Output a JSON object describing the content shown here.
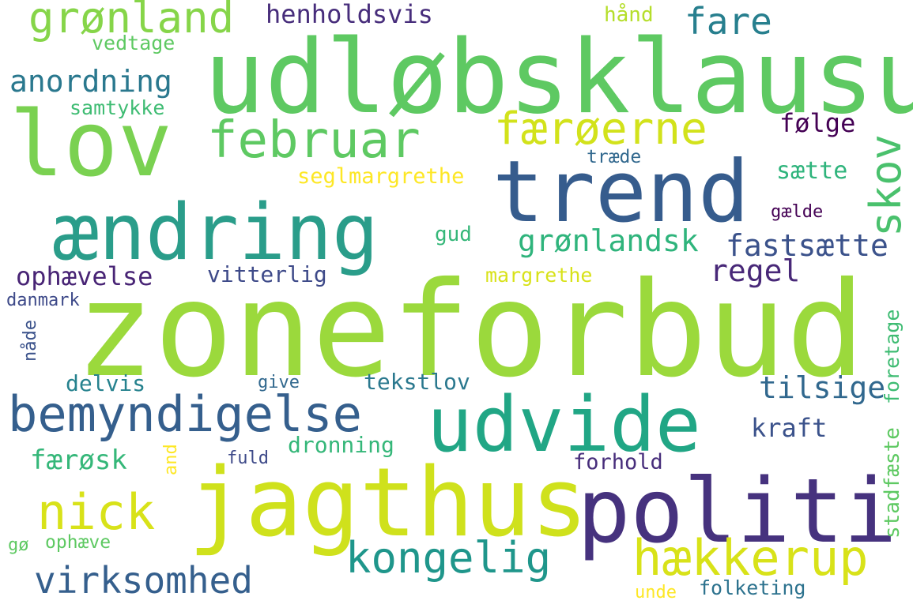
{
  "words": {
    "zoneforbud": "zoneforbud",
    "udlobsklausul": "udløbsklausul",
    "jagthus": "jagthus",
    "politi": "politi",
    "andring": "ændring",
    "trend": "trend",
    "lov": "lov",
    "udvide": "udvide",
    "bemyndigelse": "bemyndigelse",
    "februar": "februar",
    "hakkerup": "hækkerup",
    "kongelig": "kongelig",
    "nick": "nick",
    "faroerne": "færøerne",
    "gronland": "grønland",
    "virksomhed": "virksomhed",
    "skov": "skov",
    "fare": "fare",
    "gronlandsk": "grønlandsk",
    "anordning": "anordning",
    "fastsatte": "fastsætte",
    "tilsige": "tilsige",
    "regel": "regel",
    "henholdsvis": "henholdsvis",
    "farosk": "færøsk",
    "ophavelse": "ophævelse",
    "kraft": "kraft",
    "seglmargrethe": "seglmargrethe",
    "vitterlig": "vitterlig",
    "folge": "følge",
    "tekstlov": "tekstlov",
    "dronning": "dronning",
    "satte": "sætte",
    "stadfaste": "stadfæste",
    "margrethe": "margrethe",
    "delvis": "delvis",
    "samtykke": "samtykke",
    "vedtage": "vedtage",
    "forhold": "forhold",
    "folketing": "folketing",
    "foretage": "foretage",
    "ophave": "ophæve",
    "gud": "gud",
    "hand": "hånd",
    "danmark": "danmark",
    "trade": "træde",
    "galde": "gælde",
    "nade": "nåde",
    "unde": "unde",
    "give": "give",
    "fuld": "fuld",
    "and": "and",
    "go": "gø"
  },
  "colors": {
    "yellow_green": "#a0da39",
    "light_green": "#5ec962",
    "green": "#3fbc73",
    "teal": "#1fa187",
    "teal_blue": "#277f8e",
    "blue": "#365c8d",
    "indigo": "#46327e",
    "purple": "#440154",
    "yellow": "#d8e219",
    "bright_yellow": "#fde725"
  }
}
